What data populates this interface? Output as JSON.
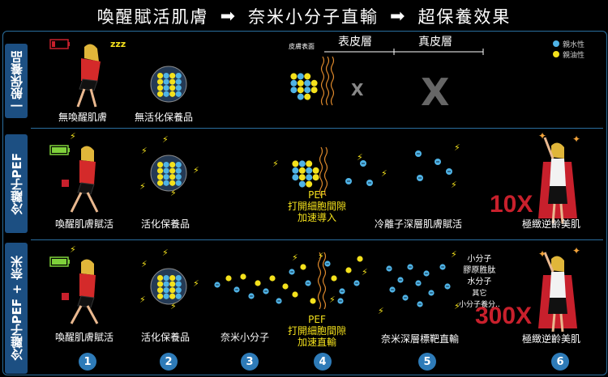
{
  "header": {
    "step1": "喚醒賦活肌膚",
    "arrow": "➡",
    "step2": "奈米小分子直輸",
    "step3": "超保養效果"
  },
  "rows": [
    {
      "side_label": "一般保養品"
    },
    {
      "side_label": "冷離子PEF"
    },
    {
      "side_label": "冷離子PEF + 奈米"
    }
  ],
  "row1": {
    "c1": "無喚醒肌膚",
    "c2": "無活化保養品",
    "skin_surface": "皮膚表面",
    "epidermis": "表皮層",
    "dermis": "真皮層",
    "x_small": "X",
    "x_big": "X",
    "legend_hydrophilic": "親水性",
    "legend_lipophilic": "親油性"
  },
  "row2": {
    "c1": "喚醒肌膚賦活",
    "c2": "活化保養品",
    "pef1": "PEF",
    "pef2": "打開細胞間隙",
    "pef3": "加速導入",
    "c5": "冷離子深層肌膚賦活",
    "mult": "10X",
    "c6": "極緻逆齡美肌"
  },
  "row3": {
    "c1": "喚醒肌膚賦活",
    "c2": "活化保養品",
    "c3": "奈米小分子",
    "pef1": "PEF",
    "pef2": "打開細胞間隙",
    "pef3": "加速直輸",
    "c5": "奈米深層標靶直輸",
    "t1": "小分子",
    "t2": "膠原胜肽",
    "t3": "水分子",
    "t4": "其它",
    "t5": "小分子養分..",
    "mult": "300X",
    "c6": "極緻逆齡美肌"
  },
  "steps": [
    "1",
    "2",
    "3",
    "4",
    "5",
    "6"
  ],
  "colors": {
    "blue_dot": "#4fb3e6",
    "yellow_dot": "#f4e11c",
    "accent": "#2e7bb8",
    "red": "#c8202c"
  }
}
